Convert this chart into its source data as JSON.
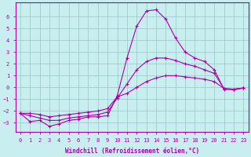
{
  "xlabel": "Windchill (Refroidissement éolien,°C)",
  "bg_color": "#c8eef0",
  "grid_color": "#a0cccc",
  "line_color": "#aa00aa",
  "xlim": [
    -0.5,
    23.5
  ],
  "ylim": [
    -3.8,
    7.2
  ],
  "yticks": [
    -3,
    -2,
    -1,
    0,
    1,
    2,
    3,
    4,
    5,
    6
  ],
  "xticks": [
    0,
    1,
    2,
    3,
    4,
    5,
    6,
    7,
    8,
    9,
    10,
    11,
    12,
    13,
    14,
    15,
    16,
    17,
    18,
    19,
    20,
    21,
    22,
    23
  ],
  "line1_x": [
    0,
    1,
    2,
    3,
    4,
    5,
    6,
    7,
    8,
    9,
    10,
    11,
    12,
    13,
    14,
    15,
    16,
    17,
    18,
    19,
    20,
    21,
    22,
    23
  ],
  "line1_y": [
    -2.2,
    -2.9,
    -2.8,
    -3.3,
    -3.1,
    -2.8,
    -2.7,
    -2.5,
    -2.5,
    -2.4,
    -0.7,
    2.5,
    5.2,
    6.5,
    6.6,
    5.8,
    4.2,
    3.0,
    2.5,
    2.2,
    1.5,
    -0.15,
    -0.2,
    -0.05
  ],
  "line2_x": [
    0,
    1,
    2,
    3,
    4,
    5,
    6,
    7,
    8,
    9,
    10,
    11,
    12,
    13,
    14,
    15,
    16,
    17,
    18,
    19,
    20,
    21,
    22,
    23
  ],
  "line2_y": [
    -2.2,
    -2.4,
    -2.6,
    -2.8,
    -2.8,
    -2.6,
    -2.5,
    -2.4,
    -2.3,
    -2.1,
    -0.9,
    0.3,
    1.5,
    2.2,
    2.5,
    2.5,
    2.3,
    2.0,
    1.8,
    1.5,
    1.2,
    -0.1,
    -0.15,
    -0.05
  ],
  "line3_x": [
    0,
    1,
    2,
    3,
    4,
    5,
    6,
    7,
    8,
    9,
    10,
    11,
    12,
    13,
    14,
    15,
    16,
    17,
    18,
    19,
    20,
    21,
    22,
    23
  ],
  "line3_y": [
    -2.2,
    -2.2,
    -2.3,
    -2.5,
    -2.4,
    -2.3,
    -2.2,
    -2.1,
    -2.0,
    -1.8,
    -0.8,
    -0.5,
    0.0,
    0.5,
    0.8,
    1.0,
    1.0,
    0.9,
    0.8,
    0.7,
    0.5,
    -0.1,
    -0.15,
    -0.05
  ]
}
